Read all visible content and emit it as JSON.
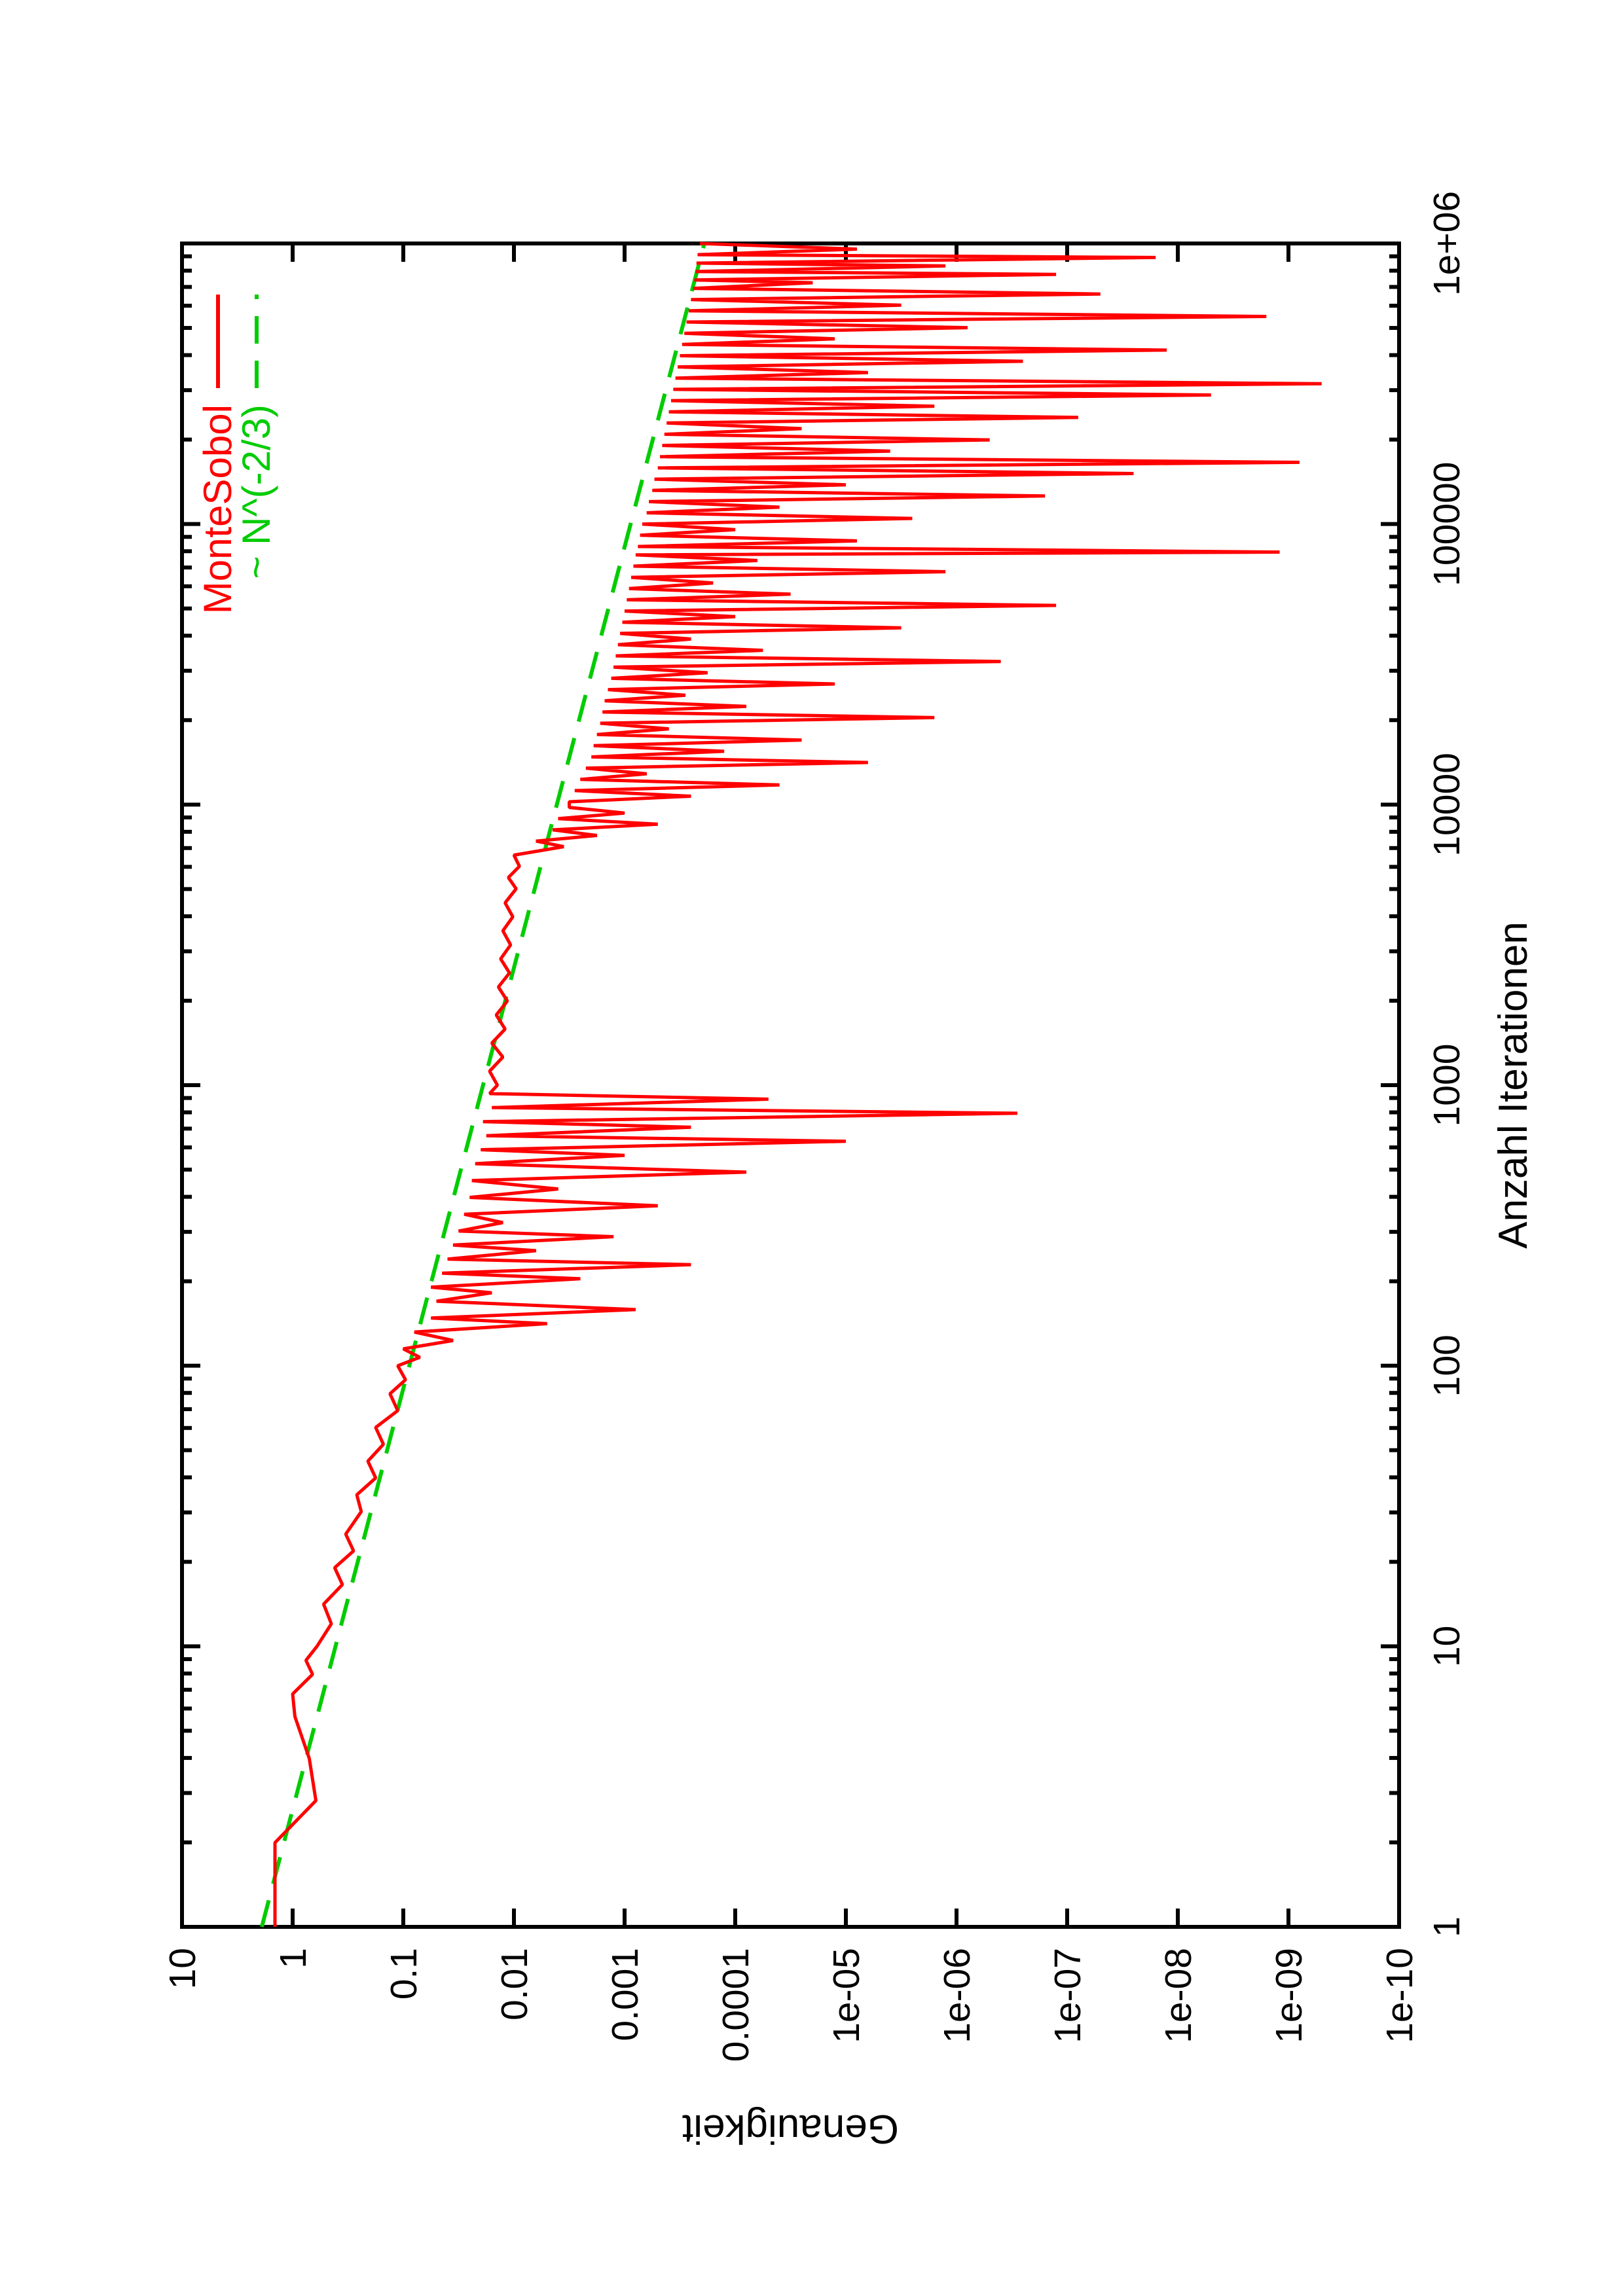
{
  "chart_data": {
    "type": "line",
    "title": "",
    "xlabel": "Anzahl Iterationen",
    "ylabel": "Genauigkeit",
    "xscale": "log",
    "yscale": "log",
    "xlim": [
      1,
      1000000
    ],
    "ylim": [
      1e-10,
      10
    ],
    "grid": false,
    "legend_position": "top-right",
    "orientation": "landscape-rotated-90-ccw-on-portrait-page",
    "xtick_labels": [
      "1",
      "10",
      "100",
      "1000",
      "10000",
      "100000",
      "1e+06"
    ],
    "ytick_labels": [
      "10",
      "1",
      "0.1",
      "0.01",
      "0.001",
      "0.0001",
      "1e-05",
      "1e-06",
      "1e-07",
      "1e-08",
      "1e-09",
      "1e-10"
    ],
    "colors": {
      "montesobol": "#ff0000",
      "reference": "#00cc00",
      "frame": "#000000",
      "background": "#ffffff"
    },
    "series": [
      {
        "name": "MonteSobol",
        "color": "#ff0000",
        "style": "solid",
        "points_log10": [
          [
            0.0,
            0.16
          ],
          [
            0.3,
            0.16
          ],
          [
            0.45,
            -0.21
          ],
          [
            0.6,
            -0.15
          ],
          [
            0.75,
            -0.02
          ],
          [
            0.83,
            0.0
          ],
          [
            0.9,
            -0.18
          ],
          [
            0.95,
            -0.12
          ],
          [
            1.0,
            -0.22
          ],
          [
            1.08,
            -0.35
          ],
          [
            1.15,
            -0.28
          ],
          [
            1.22,
            -0.45
          ],
          [
            1.28,
            -0.38
          ],
          [
            1.34,
            -0.55
          ],
          [
            1.4,
            -0.48
          ],
          [
            1.48,
            -0.62
          ],
          [
            1.54,
            -0.58
          ],
          [
            1.6,
            -0.75
          ],
          [
            1.66,
            -0.68
          ],
          [
            1.72,
            -0.82
          ],
          [
            1.78,
            -0.75
          ],
          [
            1.84,
            -0.95
          ],
          [
            1.9,
            -0.88
          ],
          [
            1.95,
            -1.02
          ],
          [
            2.0,
            -0.95
          ],
          [
            2.03,
            -1.15
          ],
          [
            2.06,
            -1.0
          ],
          [
            2.09,
            -1.45
          ],
          [
            2.12,
            -1.1
          ],
          [
            2.15,
            -2.3
          ],
          [
            2.17,
            -1.25
          ],
          [
            2.2,
            -3.1
          ],
          [
            2.23,
            -1.3
          ],
          [
            2.26,
            -1.8
          ],
          [
            2.28,
            -1.25
          ],
          [
            2.31,
            -2.6
          ],
          [
            2.33,
            -1.35
          ],
          [
            2.36,
            -3.6
          ],
          [
            2.38,
            -1.4
          ],
          [
            2.41,
            -2.2
          ],
          [
            2.43,
            -1.45
          ],
          [
            2.46,
            -2.9
          ],
          [
            2.48,
            -1.5
          ],
          [
            2.51,
            -1.9
          ],
          [
            2.54,
            -1.55
          ],
          [
            2.57,
            -3.3
          ],
          [
            2.6,
            -1.6
          ],
          [
            2.63,
            -2.4
          ],
          [
            2.66,
            -1.62
          ],
          [
            2.69,
            -4.1
          ],
          [
            2.72,
            -1.65
          ],
          [
            2.75,
            -3.0
          ],
          [
            2.77,
            -1.7
          ],
          [
            2.8,
            -5.0
          ],
          [
            2.82,
            -1.75
          ],
          [
            2.85,
            -3.6
          ],
          [
            2.87,
            -1.72
          ],
          [
            2.9,
            -6.55
          ],
          [
            2.92,
            -1.8
          ],
          [
            2.95,
            -4.3
          ],
          [
            2.97,
            -1.78
          ],
          [
            3.0,
            -1.85
          ],
          [
            3.05,
            -1.78
          ],
          [
            3.1,
            -1.9
          ],
          [
            3.15,
            -1.8
          ],
          [
            3.2,
            -1.92
          ],
          [
            3.25,
            -1.84
          ],
          [
            3.3,
            -1.94
          ],
          [
            3.35,
            -1.86
          ],
          [
            3.4,
            -1.96
          ],
          [
            3.45,
            -1.88
          ],
          [
            3.5,
            -1.97
          ],
          [
            3.55,
            -1.9
          ],
          [
            3.6,
            -1.99
          ],
          [
            3.65,
            -1.92
          ],
          [
            3.7,
            -2.02
          ],
          [
            3.74,
            -1.95
          ],
          [
            3.78,
            -2.05
          ],
          [
            3.82,
            -2.0
          ],
          [
            3.85,
            -2.45
          ],
          [
            3.87,
            -2.2
          ],
          [
            3.89,
            -2.75
          ],
          [
            3.91,
            -2.35
          ],
          [
            3.93,
            -3.3
          ],
          [
            3.95,
            -2.4
          ],
          [
            3.97,
            -3.0
          ],
          [
            3.99,
            -2.5
          ],
          [
            4.01,
            -2.5
          ],
          [
            4.03,
            -3.6
          ],
          [
            4.05,
            -2.55
          ],
          [
            4.07,
            -4.4
          ],
          [
            4.09,
            -2.6
          ],
          [
            4.11,
            -3.2
          ],
          [
            4.13,
            -2.65
          ],
          [
            4.15,
            -5.2
          ],
          [
            4.17,
            -2.7
          ],
          [
            4.19,
            -3.9
          ],
          [
            4.21,
            -2.72
          ],
          [
            4.23,
            -4.6
          ],
          [
            4.25,
            -2.75
          ],
          [
            4.27,
            -3.4
          ],
          [
            4.29,
            -2.78
          ],
          [
            4.31,
            -5.8
          ],
          [
            4.33,
            -2.8
          ],
          [
            4.35,
            -4.1
          ],
          [
            4.37,
            -2.82
          ],
          [
            4.39,
            -3.55
          ],
          [
            4.41,
            -2.85
          ],
          [
            4.43,
            -4.9
          ],
          [
            4.45,
            -2.88
          ],
          [
            4.47,
            -3.75
          ],
          [
            4.49,
            -2.9
          ],
          [
            4.51,
            -6.4
          ],
          [
            4.53,
            -2.92
          ],
          [
            4.55,
            -4.25
          ],
          [
            4.57,
            -2.94
          ],
          [
            4.59,
            -3.6
          ],
          [
            4.61,
            -2.96
          ],
          [
            4.63,
            -5.5
          ],
          [
            4.65,
            -2.98
          ],
          [
            4.67,
            -4.0
          ],
          [
            4.69,
            -3.0
          ],
          [
            4.71,
            -6.9
          ],
          [
            4.73,
            -3.02
          ],
          [
            4.75,
            -4.5
          ],
          [
            4.77,
            -3.04
          ],
          [
            4.79,
            -3.8
          ],
          [
            4.81,
            -3.06
          ],
          [
            4.83,
            -5.9
          ],
          [
            4.85,
            -3.08
          ],
          [
            4.87,
            -4.2
          ],
          [
            4.89,
            -3.1
          ],
          [
            4.9,
            -8.92
          ],
          [
            4.92,
            -3.12
          ],
          [
            4.94,
            -5.1
          ],
          [
            4.96,
            -3.14
          ],
          [
            4.98,
            -4.0
          ],
          [
            5.0,
            -3.16
          ],
          [
            5.02,
            -5.6
          ],
          [
            5.04,
            -3.2
          ],
          [
            5.06,
            -4.4
          ],
          [
            5.08,
            -3.22
          ],
          [
            5.1,
            -6.8
          ],
          [
            5.12,
            -3.25
          ],
          [
            5.14,
            -5.0
          ],
          [
            5.16,
            -3.27
          ],
          [
            5.18,
            -7.6
          ],
          [
            5.2,
            -3.3
          ],
          [
            5.22,
            -9.1
          ],
          [
            5.24,
            -3.32
          ],
          [
            5.26,
            -5.4
          ],
          [
            5.28,
            -3.34
          ],
          [
            5.3,
            -6.3
          ],
          [
            5.32,
            -3.36
          ],
          [
            5.34,
            -4.6
          ],
          [
            5.36,
            -3.38
          ],
          [
            5.38,
            -7.1
          ],
          [
            5.4,
            -3.4
          ],
          [
            5.42,
            -5.8
          ],
          [
            5.44,
            -3.42
          ],
          [
            5.46,
            -8.3
          ],
          [
            5.48,
            -3.44
          ],
          [
            5.5,
            -9.3
          ],
          [
            5.52,
            -3.46
          ],
          [
            5.54,
            -5.2
          ],
          [
            5.56,
            -3.48
          ],
          [
            5.58,
            -6.6
          ],
          [
            5.6,
            -3.5
          ],
          [
            5.62,
            -7.9
          ],
          [
            5.64,
            -3.52
          ],
          [
            5.66,
            -4.9
          ],
          [
            5.68,
            -3.54
          ],
          [
            5.7,
            -6.1
          ],
          [
            5.72,
            -3.56
          ],
          [
            5.74,
            -8.8
          ],
          [
            5.76,
            -3.58
          ],
          [
            5.78,
            -5.5
          ],
          [
            5.8,
            -3.6
          ],
          [
            5.82,
            -7.3
          ],
          [
            5.84,
            -3.62
          ],
          [
            5.86,
            -4.7
          ],
          [
            5.87,
            -3.63
          ],
          [
            5.89,
            -6.9
          ],
          [
            5.9,
            -3.64
          ],
          [
            5.92,
            -5.9
          ],
          [
            5.93,
            -3.65
          ],
          [
            5.95,
            -7.8
          ],
          [
            5.96,
            -3.66
          ],
          [
            5.98,
            -5.1
          ],
          [
            6.0,
            -3.68
          ]
        ]
      },
      {
        "name": "~ N^(-2/3)",
        "color": "#00cc00",
        "style": "dashed",
        "model": "y = 1.9 * N^(-2/3)",
        "points_log10": [
          [
            0,
            0.279
          ],
          [
            6,
            -3.721
          ]
        ]
      }
    ]
  }
}
